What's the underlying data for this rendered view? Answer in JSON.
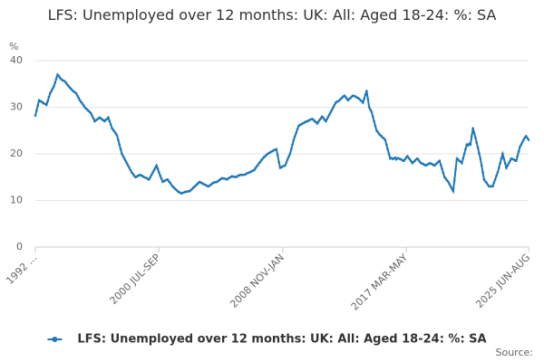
{
  "chart_data": {
    "type": "line",
    "title": "LFS: Unemployed over 12 months: UK: All: Aged 18-24: %: SA",
    "y_label": "%",
    "source": "Source:",
    "ylim": [
      0,
      40
    ],
    "yticks": [
      0,
      10,
      20,
      30,
      40
    ],
    "grid": true,
    "legend": "bottom",
    "categories": [
      "1992 ...",
      null,
      null,
      null,
      null,
      null,
      null,
      null,
      null,
      null,
      null,
      null,
      null,
      null,
      null,
      null,
      null,
      null,
      null,
      null,
      null,
      null,
      null,
      null,
      null,
      null,
      null,
      null,
      null,
      null,
      null,
      null,
      null,
      null,
      null,
      null,
      null,
      null,
      null,
      null,
      null,
      null,
      null,
      null,
      null,
      null,
      null,
      null,
      null,
      null,
      null,
      null,
      null,
      null,
      null,
      null,
      null,
      null,
      null,
      null,
      null,
      null,
      null,
      null,
      null,
      null,
      null,
      null,
      null,
      null,
      null,
      null,
      null,
      null,
      null,
      null,
      null,
      null,
      null,
      null,
      null,
      null,
      null,
      null,
      null,
      null,
      null,
      null,
      null,
      null,
      null,
      null,
      null,
      null,
      null,
      null,
      null,
      null,
      null,
      null,
      "2000 JUL-SEP",
      null,
      null,
      null,
      null,
      null,
      null,
      null,
      null,
      null,
      null,
      null,
      null,
      null,
      null,
      null,
      null,
      null,
      null,
      null,
      null,
      null,
      null,
      null,
      null,
      null,
      null,
      null,
      null,
      null,
      null,
      null,
      null,
      null,
      null,
      null,
      null,
      null,
      null,
      null,
      null,
      null,
      null,
      null,
      null,
      null,
      null,
      null,
      null,
      null,
      null,
      null,
      null,
      null,
      null,
      null,
      null,
      null,
      null,
      null,
      null,
      null,
      null,
      null,
      null,
      null,
      null,
      null,
      null,
      null,
      null,
      null,
      null,
      null,
      null,
      null,
      null,
      null,
      null,
      null,
      null,
      null,
      null,
      null,
      null,
      null,
      null,
      null,
      null,
      null,
      null,
      null,
      null,
      null,
      null,
      null,
      null,
      null,
      null,
      null,
      "2008 NOV-JAN",
      null,
      null,
      null,
      null,
      null,
      null,
      null,
      null,
      null,
      null,
      null,
      null,
      null,
      null,
      null,
      null,
      null,
      null,
      null,
      null,
      null,
      null,
      null,
      null,
      null,
      null,
      null,
      null,
      null,
      null,
      null,
      null,
      null,
      null,
      null,
      null,
      null,
      null,
      null,
      null,
      null,
      null,
      null,
      null,
      null,
      null,
      null,
      null,
      null,
      null,
      null,
      null,
      null,
      null,
      null,
      null,
      null,
      null,
      null,
      null,
      null,
      null,
      null,
      null,
      null,
      null,
      null,
      null,
      null,
      null,
      null,
      null,
      null,
      null,
      null,
      null,
      null,
      null,
      null,
      null,
      null,
      null,
      null,
      null,
      null,
      null,
      null,
      null,
      null,
      null,
      null,
      null,
      null,
      null,
      null,
      null,
      null,
      null,
      null,
      "2017 MAR-MAY",
      null,
      null,
      null,
      null,
      null,
      null,
      null,
      null,
      null,
      null,
      null,
      null,
      null,
      null,
      null,
      null,
      null,
      null,
      null,
      null,
      null,
      null,
      null,
      null,
      null,
      null,
      null,
      null,
      null,
      null,
      null,
      null,
      null,
      null,
      null,
      null,
      null,
      null,
      null,
      null,
      null,
      null,
      null,
      null,
      null,
      null,
      null,
      null,
      null,
      null,
      null,
      null,
      null,
      null,
      null,
      null,
      null,
      null,
      null,
      null,
      null,
      null,
      null,
      null,
      null,
      null,
      null,
      null,
      null,
      null,
      null,
      null,
      null,
      null,
      null,
      null,
      null,
      null,
      null,
      null,
      null,
      null,
      null,
      null,
      null,
      null,
      null,
      null,
      null,
      null,
      null,
      null,
      null,
      null,
      null,
      null,
      null,
      null,
      "2025 JUN-AUG"
    ],
    "series": [
      {
        "name": "LFS: Unemployed over 12 months: UK: All: Aged 18-24: %: SA",
        "color": "#1f78b8",
        "values": [
          28.2,
          29.3,
          30.4,
          31.5,
          31.3,
          31.2,
          31.0,
          30.8,
          30.7,
          30.5,
          31.3,
          32.2,
          33.0,
          33.5,
          34.0,
          34.5,
          35.3,
          36.2,
          37.0,
          36.7,
          36.3,
          36.0,
          35.8,
          35.7,
          35.5,
          35.2,
          34.8,
          34.5,
          34.2,
          33.9,
          33.6,
          33.4,
          33.2,
          33.0,
          32.5,
          32.0,
          31.5,
          31.1,
          30.8,
          30.4,
          30.0,
          29.7,
          29.5,
          29.2,
          29.0,
          28.7,
          28.1,
          27.6,
          27.0,
          27.2,
          27.4,
          27.6,
          27.8,
          27.6,
          27.4,
          27.2,
          27.0,
          27.3,
          27.5,
          27.8,
          27.0,
          26.3,
          25.5,
          25.1,
          24.8,
          24.4,
          24.0,
          23.0,
          22.0,
          21.0,
          20.0,
          19.5,
          19.0,
          18.5,
          18.0,
          17.5,
          17.0,
          16.5,
          16.0,
          15.7,
          15.3,
          15.0,
          15.1,
          15.3,
          15.4,
          15.5,
          15.3,
          15.2,
          15.0,
          14.9,
          14.8,
          14.6,
          14.5,
          15.0,
          15.5,
          16.0,
          16.5,
          17.0,
          17.5,
          16.8,
          16.0,
          15.3,
          14.7,
          14.0,
          14.1,
          14.3,
          14.4,
          14.5,
          14.1,
          13.8,
          13.4,
          13.0,
          12.8,
          12.5,
          12.3,
          12.0,
          11.8,
          11.7,
          11.5,
          11.6,
          11.7,
          11.8,
          11.9,
          11.9,
          12.0,
          12.0,
          12.3,
          12.5,
          12.8,
          13.0,
          13.3,
          13.5,
          13.8,
          14.0,
          13.8,
          13.7,
          13.5,
          13.4,
          13.3,
          13.1,
          13.0,
          13.2,
          13.4,
          13.6,
          13.8,
          13.9,
          13.9,
          14.0,
          14.2,
          14.4,
          14.6,
          14.8,
          14.7,
          14.7,
          14.6,
          14.5,
          14.7,
          14.9,
          15.0,
          15.2,
          15.1,
          15.1,
          15.0,
          15.1,
          15.3,
          15.4,
          15.5,
          15.5,
          15.5,
          15.5,
          15.6,
          15.8,
          15.9,
          16.0,
          16.1,
          16.3,
          16.4,
          16.5,
          16.9,
          17.3,
          17.6,
          18.0,
          18.3,
          18.7,
          19.0,
          19.3,
          19.5,
          19.8,
          20.0,
          20.2,
          20.3,
          20.5,
          20.6,
          20.8,
          20.9,
          21.0,
          19.7,
          18.3,
          17.0,
          17.1,
          17.3,
          17.4,
          17.5,
          18.1,
          18.8,
          19.4,
          20.0,
          21.0,
          22.0,
          23.0,
          23.8,
          24.5,
          25.3,
          26.0,
          26.2,
          26.3,
          26.5,
          26.6,
          26.8,
          26.9,
          27.0,
          27.1,
          27.3,
          27.4,
          27.5,
          27.3,
          27.0,
          26.8,
          26.5,
          26.9,
          27.3,
          27.6,
          28.0,
          27.7,
          27.3,
          27.0,
          27.5,
          28.0,
          28.5,
          29.0,
          29.5,
          30.0,
          30.5,
          31.0,
          31.2,
          31.3,
          31.5,
          31.8,
          32.0,
          32.3,
          32.5,
          32.2,
          31.8,
          31.5,
          31.8,
          32.0,
          32.3,
          32.5,
          32.4,
          32.3,
          32.1,
          32.0,
          31.8,
          31.5,
          31.3,
          31.0,
          31.8,
          32.7,
          33.5,
          31.8,
          30.0,
          29.5,
          29.0,
          28.0,
          27.0,
          26.0,
          25.0,
          24.7,
          24.3,
          24.0,
          23.8,
          23.5,
          23.3,
          23.0,
          22.0,
          21.0,
          20.0,
          19.0,
          19.1,
          18.9,
          19.0,
          19.2,
          18.8,
          19.1,
          19.0,
          18.9,
          18.8,
          18.6,
          18.5,
          18.8,
          19.2,
          19.5,
          19.1,
          18.8,
          18.4,
          18.0,
          18.3,
          18.5,
          18.8,
          19.0,
          18.7,
          18.3,
          18.0,
          17.9,
          17.8,
          17.6,
          17.5,
          17.7,
          17.8,
          18.0,
          17.9,
          17.8,
          17.6,
          17.5,
          17.8,
          18.0,
          18.3,
          18.5,
          17.6,
          16.8,
          15.9,
          15.0,
          14.7,
          14.3,
          14.0,
          13.5,
          13.0,
          12.5,
          12.0,
          14.3,
          16.7,
          19.0,
          18.8,
          18.5,
          18.3,
          18.0,
          19.0,
          20.0,
          21.0,
          22.0,
          21.8,
          22.2,
          22.0,
          23.8,
          25.5,
          24.5,
          23.5,
          22.4,
          21.3,
          20.1,
          19.0,
          17.5,
          16.0,
          14.5,
          14.1,
          13.8,
          13.4,
          13.0,
          13.0,
          13.1,
          13.0,
          13.8,
          14.5,
          15.3,
          16.0,
          17.0,
          18.0,
          19.0,
          20.0,
          19.0,
          18.0,
          17.0,
          17.5,
          18.0,
          18.5,
          19.0,
          18.9,
          18.8,
          18.6,
          18.5,
          19.5,
          20.5,
          21.5,
          22.0,
          22.5,
          23.0,
          23.5,
          23.8,
          23.4,
          23.0
        ]
      }
    ]
  }
}
